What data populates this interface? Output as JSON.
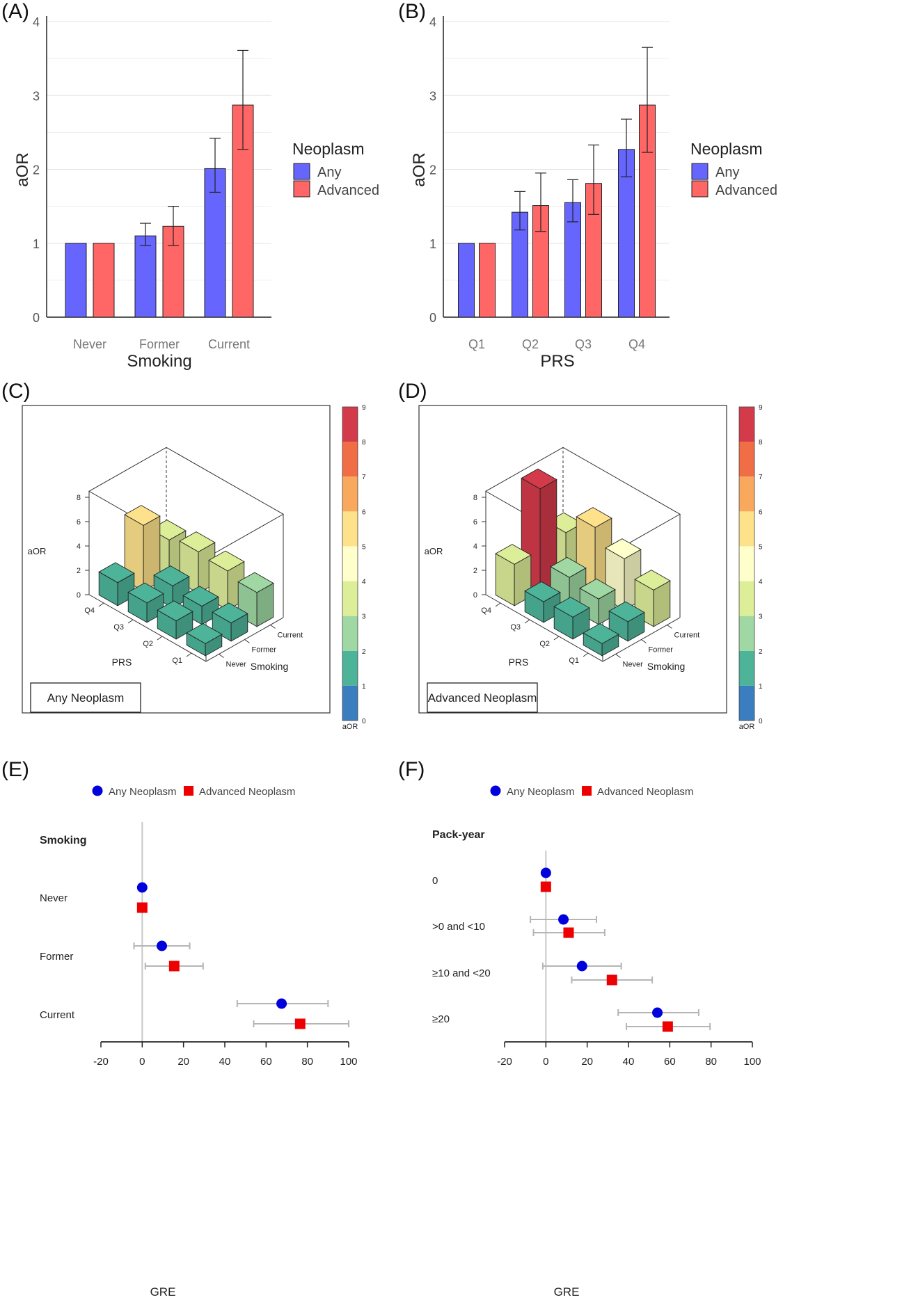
{
  "panels": {
    "A": {
      "label": "(A)"
    },
    "B": {
      "label": "(B)"
    },
    "C": {
      "label": "(C)"
    },
    "D": {
      "label": "(D)"
    },
    "E": {
      "label": "(E)"
    },
    "F": {
      "label": "(F)"
    }
  },
  "colors": {
    "any": "#6666ff",
    "advanced": "#ff6666",
    "any_dot": "#0000dd",
    "advanced_dot": "#ee0000",
    "errbar_gray": "#b5b5b5",
    "colorscale": [
      "#3a7ec0",
      "#4db49a",
      "#9fd8a3",
      "#ddee99",
      "#ffffcc",
      "#fee28b",
      "#f9a95e",
      "#f06d45",
      "#d33a4a"
    ]
  },
  "bar_legend": {
    "title": "Neoplasm",
    "items": [
      "Any",
      "Advanced"
    ]
  },
  "forest_legend": {
    "items": [
      "Any Neoplasm",
      "Advanced Neoplasm"
    ]
  },
  "chart_data": [
    {
      "id": "A",
      "type": "bar",
      "xlabel": "Smoking",
      "ylabel": "aOR",
      "ylim": [
        0,
        4
      ],
      "yticks": [
        0,
        1,
        2,
        3,
        4
      ],
      "categories": [
        "Never",
        "Former",
        "Current"
      ],
      "series": [
        {
          "name": "Any",
          "values": [
            1.0,
            1.1,
            2.01
          ],
          "lower": [
            null,
            0.97,
            1.69
          ],
          "upper": [
            null,
            1.27,
            2.42
          ]
        },
        {
          "name": "Advanced",
          "values": [
            1.0,
            1.23,
            2.87
          ],
          "lower": [
            null,
            0.97,
            2.27
          ],
          "upper": [
            null,
            1.5,
            3.61
          ]
        }
      ],
      "grid": true,
      "legend": "right"
    },
    {
      "id": "B",
      "type": "bar",
      "xlabel": "PRS",
      "ylabel": "aOR",
      "ylim": [
        0,
        4
      ],
      "yticks": [
        0,
        1,
        2,
        3,
        4
      ],
      "categories": [
        "Q1",
        "Q2",
        "Q3",
        "Q4"
      ],
      "series": [
        {
          "name": "Any",
          "values": [
            1.0,
            1.42,
            1.55,
            2.27
          ],
          "lower": [
            null,
            1.18,
            1.29,
            1.9
          ],
          "upper": [
            null,
            1.7,
            1.86,
            2.68
          ]
        },
        {
          "name": "Advanced",
          "values": [
            1.0,
            1.51,
            1.81,
            2.87
          ],
          "lower": [
            null,
            1.16,
            1.39,
            2.23
          ],
          "upper": [
            null,
            1.95,
            2.33,
            3.65
          ]
        }
      ],
      "grid": true,
      "legend": "right"
    },
    {
      "id": "C",
      "type": "bar3d",
      "caption": "Any Neoplasm",
      "zlabel": "aOR",
      "xlabel": "PRS",
      "ylabel": "Smoking",
      "x_categories": [
        "Q1",
        "Q2",
        "Q3",
        "Q4"
      ],
      "y_categories": [
        "Never",
        "Former",
        "Current"
      ],
      "zticks": [
        0,
        2,
        4,
        6,
        8
      ],
      "values": [
        [
          1.0,
          1.5,
          2.8
        ],
        [
          1.5,
          1.5,
          3.2
        ],
        [
          1.6,
          1.8,
          3.4
        ],
        [
          1.9,
          5.4,
          3.0
        ]
      ],
      "colorbar": {
        "label": "aOR",
        "ticks": [
          0,
          1,
          2,
          3,
          4,
          5,
          6,
          7,
          8,
          9
        ]
      }
    },
    {
      "id": "D",
      "type": "bar3d",
      "caption": "Advanced Neoplasm",
      "zlabel": "aOR",
      "xlabel": "PRS",
      "ylabel": "Smoking",
      "x_categories": [
        "Q1",
        "Q2",
        "Q3",
        "Q4"
      ],
      "y_categories": [
        "Never",
        "Former",
        "Current"
      ],
      "zticks": [
        0,
        2,
        4,
        6,
        8
      ],
      "values": [
        [
          1.0,
          1.6,
          3.0
        ],
        [
          1.8,
          2.1,
          4.2
        ],
        [
          1.7,
          2.5,
          5.4
        ],
        [
          3.4,
          8.4,
          3.6
        ]
      ],
      "colorbar": {
        "label": "aOR",
        "ticks": [
          0,
          1,
          2,
          3,
          4,
          5,
          6,
          7,
          8,
          9
        ]
      }
    },
    {
      "id": "E",
      "type": "scatter",
      "section": "Smoking",
      "xlabel": "GRE",
      "xlim": [
        -20,
        100
      ],
      "xticks": [
        -20,
        0,
        20,
        40,
        60,
        80,
        100
      ],
      "rows": [
        "Never",
        "Former",
        "Current"
      ],
      "series": [
        {
          "name": "Any Neoplasm",
          "values": [
            0,
            9.5,
            67.5
          ],
          "lower": [
            null,
            -4,
            46
          ],
          "upper": [
            null,
            23,
            90
          ]
        },
        {
          "name": "Advanced Neoplasm",
          "values": [
            0,
            15.5,
            76.5
          ],
          "lower": [
            null,
            1.5,
            54
          ],
          "upper": [
            null,
            29.5,
            100
          ]
        }
      ],
      "legend": "top"
    },
    {
      "id": "F",
      "type": "scatter",
      "section": "Pack-year",
      "xlabel": "GRE",
      "xlim": [
        -20,
        100
      ],
      "xticks": [
        -20,
        0,
        20,
        40,
        60,
        80,
        100
      ],
      "rows": [
        "0",
        ">0 and <10",
        "≥10 and <20",
        "≥20"
      ],
      "series": [
        {
          "name": "Any Neoplasm",
          "values": [
            0,
            8.5,
            17.5,
            54
          ],
          "lower": [
            null,
            -7.5,
            -1.5,
            35
          ],
          "upper": [
            null,
            24.5,
            36.5,
            74
          ]
        },
        {
          "name": "Advanced Neoplasm",
          "values": [
            0,
            11,
            32,
            59
          ],
          "lower": [
            null,
            -6,
            12.5,
            39
          ],
          "upper": [
            null,
            28.5,
            51.5,
            79.5
          ]
        }
      ],
      "legend": "top"
    }
  ]
}
